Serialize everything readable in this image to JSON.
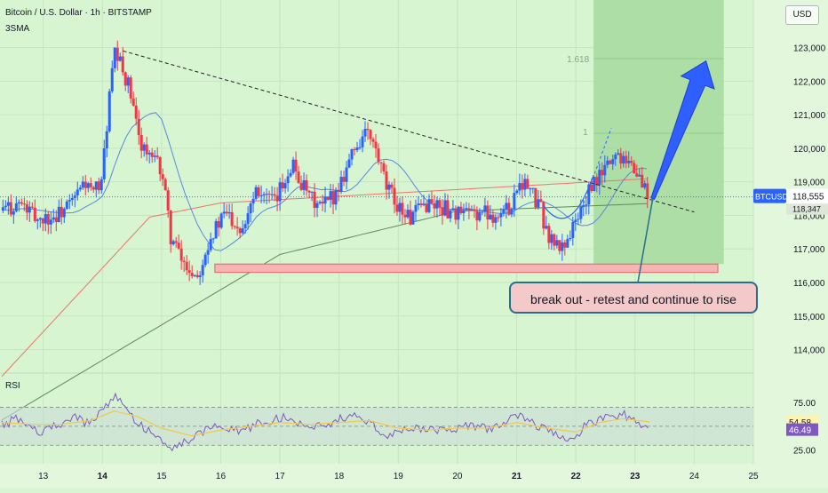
{
  "header": {
    "title": "Bitcoin / U.S. Dollar · 1h · BITSTAMP",
    "indicator": "3SMA",
    "currency": "USD"
  },
  "annotation": {
    "callout": "break out - retest and continue to rise",
    "fib_levels": [
      "1.618",
      "1"
    ]
  },
  "colors": {
    "background": "#d6f5d0",
    "target_zone": "#a8dca0",
    "candle_up": "#2962ff",
    "candle_down": "#f23645",
    "support_zone": "#f7b4b4",
    "arrow": "#2f5fff",
    "rsi_line": "#7e57c2",
    "rsi_signal": "#f2c94c"
  },
  "chart_data": [
    {
      "type": "line",
      "title": "Bitcoin / U.S. Dollar · 1h · BITSTAMP",
      "x_ticks": [
        "13",
        "14",
        "15",
        "16",
        "17",
        "18",
        "19",
        "20",
        "21",
        "22",
        "23",
        "24",
        "25"
      ],
      "y_ticks": [
        "123,000",
        "122,000",
        "121,000",
        "120,000",
        "119,000",
        "118,000",
        "117,000",
        "116,000",
        "115,000",
        "114,000"
      ],
      "ylim": [
        113300,
        124100
      ],
      "xlim": [
        12.27,
        25.0
      ],
      "last_price_label": "BTCUSD",
      "last_price": "118,555",
      "last_price_secondary": "118,347",
      "price_path": [
        [
          12.3,
          118.15
        ],
        [
          12.6,
          118.35
        ],
        [
          12.9,
          117.9
        ],
        [
          13.2,
          117.95
        ],
        [
          13.5,
          118.4
        ],
        [
          13.7,
          119.0
        ],
        [
          13.85,
          118.6
        ],
        [
          14.0,
          119.2
        ],
        [
          14.1,
          121.2
        ],
        [
          14.2,
          122.8
        ],
        [
          14.3,
          122.5
        ],
        [
          14.45,
          121.8
        ],
        [
          14.6,
          120.4
        ],
        [
          14.8,
          119.7
        ],
        [
          15.0,
          119.4
        ],
        [
          15.15,
          117.4
        ],
        [
          15.35,
          116.6
        ],
        [
          15.6,
          116.2
        ],
        [
          15.8,
          117.3
        ],
        [
          16.1,
          118.1
        ],
        [
          16.35,
          117.6
        ],
        [
          16.6,
          118.9
        ],
        [
          16.9,
          118.3
        ],
        [
          17.2,
          119.6
        ],
        [
          17.45,
          118.6
        ],
        [
          17.7,
          118.2
        ],
        [
          17.95,
          118.7
        ],
        [
          18.2,
          119.8
        ],
        [
          18.45,
          120.5
        ],
        [
          18.6,
          120.0
        ],
        [
          18.8,
          118.8
        ],
        [
          19.0,
          118.3
        ],
        [
          19.2,
          117.9
        ],
        [
          19.5,
          118.4
        ],
        [
          19.8,
          118.2
        ],
        [
          20.1,
          118.0
        ],
        [
          20.4,
          118.1
        ],
        [
          20.7,
          118.0
        ],
        [
          20.9,
          118.3
        ],
        [
          21.05,
          119.1
        ],
        [
          21.2,
          118.8
        ],
        [
          21.4,
          118.2
        ],
        [
          21.55,
          117.3
        ],
        [
          21.75,
          117.0
        ],
        [
          22.0,
          117.8
        ],
        [
          22.2,
          118.6
        ],
        [
          22.45,
          119.3
        ],
        [
          22.65,
          119.8
        ],
        [
          22.85,
          119.8
        ],
        [
          23.0,
          119.3
        ],
        [
          23.25,
          118.55
        ]
      ],
      "support_zone": [
        116.3,
        116.55
      ],
      "trendline": [
        [
          14.35,
          122.9
        ],
        [
          24.0,
          118.1
        ]
      ],
      "target_zone": {
        "x": [
          22.3,
          24.5
        ],
        "y_top": 124.1
      },
      "arrow": {
        "from": [
          23.3,
          118.5
        ],
        "to": [
          24.2,
          122.6
        ]
      }
    },
    {
      "type": "line",
      "title": "RSI",
      "y_ticks": [
        "75.00",
        "25.00"
      ],
      "ylim": [
        20,
        90
      ],
      "rsi_value": "46.49",
      "signal_value": "54.58",
      "levels": [
        70,
        50,
        30
      ],
      "rsi_path": [
        [
          12.3,
          52
        ],
        [
          12.6,
          58
        ],
        [
          12.9,
          44
        ],
        [
          13.2,
          50
        ],
        [
          13.5,
          60
        ],
        [
          13.8,
          52
        ],
        [
          14.0,
          66
        ],
        [
          14.2,
          82
        ],
        [
          14.4,
          70
        ],
        [
          14.6,
          52
        ],
        [
          14.9,
          42
        ],
        [
          15.2,
          28
        ],
        [
          15.5,
          36
        ],
        [
          15.9,
          50
        ],
        [
          16.3,
          44
        ],
        [
          16.7,
          54
        ],
        [
          17.1,
          60
        ],
        [
          17.5,
          48
        ],
        [
          17.9,
          54
        ],
        [
          18.2,
          62
        ],
        [
          18.5,
          56
        ],
        [
          18.8,
          40
        ],
        [
          19.1,
          46
        ],
        [
          19.4,
          48
        ],
        [
          19.8,
          44
        ],
        [
          20.2,
          50
        ],
        [
          20.6,
          48
        ],
        [
          21.0,
          62
        ],
        [
          21.3,
          52
        ],
        [
          21.6,
          44
        ],
        [
          21.9,
          36
        ],
        [
          22.2,
          52
        ],
        [
          22.5,
          60
        ],
        [
          22.8,
          62
        ],
        [
          23.0,
          58
        ],
        [
          23.25,
          46.49
        ]
      ],
      "signal_path": [
        [
          12.3,
          54
        ],
        [
          12.8,
          52
        ],
        [
          13.3,
          52
        ],
        [
          13.8,
          56
        ],
        [
          14.2,
          66
        ],
        [
          14.6,
          60
        ],
        [
          15.0,
          48
        ],
        [
          15.5,
          40
        ],
        [
          16.0,
          46
        ],
        [
          16.5,
          50
        ],
        [
          17.0,
          54
        ],
        [
          17.5,
          52
        ],
        [
          18.0,
          54
        ],
        [
          18.5,
          56
        ],
        [
          19.0,
          48
        ],
        [
          19.5,
          46
        ],
        [
          20.0,
          48
        ],
        [
          20.5,
          48
        ],
        [
          21.0,
          54
        ],
        [
          21.5,
          48
        ],
        [
          22.0,
          44
        ],
        [
          22.4,
          54
        ],
        [
          22.8,
          58
        ],
        [
          23.25,
          54.58
        ]
      ]
    }
  ]
}
